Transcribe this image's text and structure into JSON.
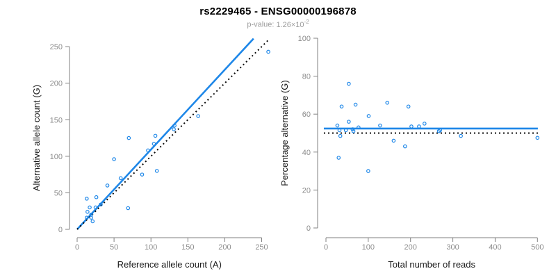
{
  "header": {
    "title": "rs2229465 - ENSG00000196878",
    "p_value_label": "p-value:",
    "p_value_base": "1.26×10",
    "p_value_exponent": "-2"
  },
  "colors": {
    "accent_blue": "#1e87e8",
    "dotted_black": "#0a0a0a",
    "axis_line": "#808080",
    "tick_label": "#8c8c8c",
    "axis_label": "#1a1a1a"
  },
  "chart_data": [
    {
      "type": "scatter",
      "panel": "left",
      "xlabel": "Reference allele count (A)",
      "ylabel": "Alternative allele count (G)",
      "xlim": [
        0,
        260
      ],
      "ylim": [
        0,
        262
      ],
      "xticks": [
        0,
        50,
        100,
        150,
        200,
        250
      ],
      "yticks": [
        0,
        50,
        100,
        150,
        200,
        250
      ],
      "grid": false,
      "legend": "none",
      "points": [
        [
          259,
          243
        ],
        [
          164,
          155
        ],
        [
          132,
          142
        ],
        [
          131,
          137
        ],
        [
          106,
          128
        ],
        [
          104,
          117
        ],
        [
          70,
          125
        ],
        [
          96,
          108
        ],
        [
          50,
          96
        ],
        [
          108,
          80
        ],
        [
          88,
          75
        ],
        [
          59,
          70
        ],
        [
          41,
          60
        ],
        [
          69,
          29
        ],
        [
          13,
          42
        ],
        [
          26,
          44
        ],
        [
          32,
          34
        ],
        [
          25,
          30
        ],
        [
          17,
          30
        ],
        [
          14,
          24
        ],
        [
          19,
          20
        ],
        [
          13,
          16
        ],
        [
          19,
          16
        ],
        [
          21,
          11
        ]
      ],
      "lines": [
        {
          "name": "regression-line",
          "style": "solid",
          "color": "accent_blue",
          "x1": 0,
          "y1": 0,
          "x2": 239,
          "y2": 261
        },
        {
          "name": "identity-line",
          "style": "dotted",
          "color": "dotted_black",
          "x1": 0,
          "y1": 0,
          "x2": 259,
          "y2": 259
        }
      ]
    },
    {
      "type": "scatter",
      "panel": "right",
      "xlabel": "Total number of reads",
      "ylabel": "Percentage alternative (G)",
      "xlim": [
        0,
        510
      ],
      "ylim": [
        0,
        100
      ],
      "xticks": [
        0,
        100,
        200,
        300,
        400,
        500
      ],
      "yticks": [
        0,
        20,
        40,
        60,
        80,
        100
      ],
      "grid": false,
      "legend": "none",
      "points": [
        [
          30,
          37
        ],
        [
          100,
          30
        ],
        [
          160,
          46
        ],
        [
          187,
          43
        ],
        [
          54,
          76
        ],
        [
          145,
          66
        ],
        [
          70,
          65
        ],
        [
          37,
          64
        ],
        [
          195,
          64
        ],
        [
          101,
          59
        ],
        [
          54,
          56
        ],
        [
          233,
          55
        ],
        [
          128,
          54
        ],
        [
          27,
          54
        ],
        [
          77,
          53
        ],
        [
          202,
          53.5
        ],
        [
          220,
          53.5
        ],
        [
          63,
          52
        ],
        [
          65,
          51
        ],
        [
          47,
          51.5
        ],
        [
          32,
          51.5
        ],
        [
          34,
          48.5
        ],
        [
          267,
          51
        ],
        [
          270,
          51.5
        ],
        [
          319,
          48.5
        ],
        [
          500,
          47.5
        ]
      ],
      "lines": [
        {
          "name": "mean-line",
          "style": "solid",
          "color": "accent_blue",
          "x1": -5,
          "y1": 52.4,
          "x2": 501,
          "y2": 52.4
        },
        {
          "name": "expected-line",
          "style": "dotted",
          "color": "dotted_black",
          "x1": -5,
          "y1": 50,
          "x2": 507,
          "y2": 50
        }
      ]
    }
  ]
}
